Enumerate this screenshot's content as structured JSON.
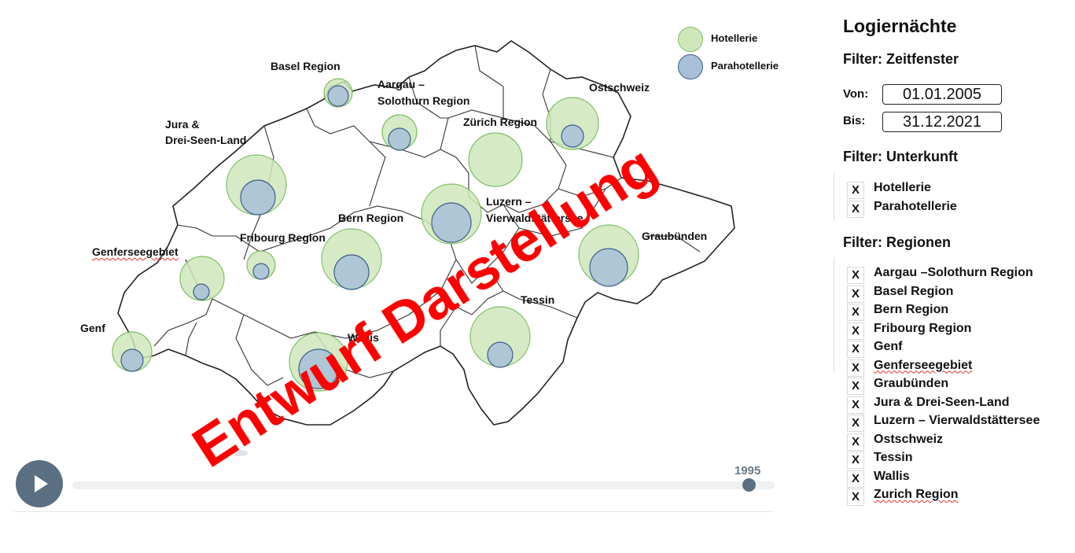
{
  "colors": {
    "hotellerie": "#cfe6bb",
    "hotellerie_stroke": "#7fbf66",
    "parahotellerie": "#a8bfd8",
    "parahotellerie_stroke": "#3f5f8c",
    "watermark": "#ff0000",
    "player": "#5a6f82"
  },
  "legend": {
    "hotellerie": "Hotellerie",
    "parahotellerie": "Parahotellerie"
  },
  "map": {
    "regions": [
      {
        "id": "basel",
        "label": "Basel Region"
      },
      {
        "id": "aargau",
        "label": "Aargau –\nSolothurn Region"
      },
      {
        "id": "ostschweiz",
        "label": "Ostschweiz"
      },
      {
        "id": "jura",
        "label": "Jura &\nDrei-Seen-Land"
      },
      {
        "id": "zuerich",
        "label": "Zürich Region"
      },
      {
        "id": "luzern",
        "label": "Luzern –\nVierwaldstättersee"
      },
      {
        "id": "bern",
        "label": "Bern Region"
      },
      {
        "id": "fribourg",
        "label": "Fribourg Region"
      },
      {
        "id": "graubuenden",
        "label": "Graubünden"
      },
      {
        "id": "genferseegebiet",
        "label": "Genferseegebiet"
      },
      {
        "id": "tessin",
        "label": "Tessin"
      },
      {
        "id": "genf",
        "label": "Genf"
      },
      {
        "id": "wallis",
        "label": "Wallis"
      }
    ]
  },
  "watermark": {
    "text": "Entwurf Darstellung"
  },
  "timeline": {
    "year": "1995",
    "play_icon": "play-icon",
    "position_fraction": 0.97
  },
  "panel": {
    "title": "Logiernächte",
    "zeitfenster_title": "Filter: Zeitfenster",
    "von_label": "Von:",
    "von_value": "01.01.2005",
    "bis_label": "Bis:",
    "bis_value": "31.12.2021",
    "unterkunft_title": "Filter: Unterkunft",
    "unterkunft": [
      {
        "mark": "X",
        "label": "Hotellerie"
      },
      {
        "mark": "X",
        "label": "Parahotellerie"
      }
    ],
    "regionen_title": "Filter: Regionen",
    "regionen": [
      {
        "mark": "X",
        "label": "Aargau –Solothurn Region"
      },
      {
        "mark": "X",
        "label": "Basel Region"
      },
      {
        "mark": "X",
        "label": "Bern Region"
      },
      {
        "mark": "X",
        "label": "Fribourg Region"
      },
      {
        "mark": "X",
        "label": "Genf"
      },
      {
        "mark": "X",
        "label": "Genferseegebiet"
      },
      {
        "mark": "X",
        "label": "Graubünden"
      },
      {
        "mark": "X",
        "label": "Jura & Drei-Seen-Land"
      },
      {
        "mark": "X",
        "label": "Luzern – Vierwaldstättersee"
      },
      {
        "mark": "X",
        "label": "Ostschweiz"
      },
      {
        "mark": "X",
        "label": "Tessin"
      },
      {
        "mark": "X",
        "label": "Wallis"
      },
      {
        "mark": "X",
        "label": "Zurich Region"
      }
    ]
  }
}
